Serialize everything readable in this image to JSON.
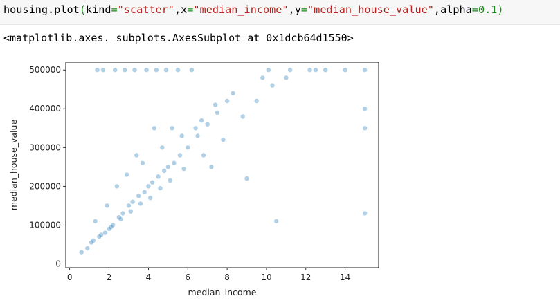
{
  "notebook": {
    "code": {
      "obj": "housing",
      "dot": ".",
      "fn": "plot",
      "open": "(",
      "kw1": "kind",
      "eq": "=",
      "val1": "\"scatter\"",
      "comma": ",",
      "kw2": "x",
      "val2": "\"median_income\"",
      "kw3": "y",
      "val3": "\"median_house_value\"",
      "kw4": "alpha",
      "val4": "0.1",
      "close": ")"
    },
    "output_text": "<matplotlib.axes._subplots.AxesSubplot at 0x1dcb64d1550>"
  },
  "chart_data": {
    "type": "scatter",
    "xlabel": "median_income",
    "ylabel": "median_house_value",
    "xlim": [
      -0.2,
      15.7
    ],
    "ylim": [
      -10000,
      520000
    ],
    "xticks": [
      0,
      2,
      4,
      6,
      8,
      10,
      12,
      14
    ],
    "xtick_labels": [
      "0",
      "2",
      "4",
      "6",
      "8",
      "10",
      "12",
      "14"
    ],
    "yticks": [
      0,
      100000,
      200000,
      300000,
      400000,
      500000
    ],
    "ytick_labels": [
      "0",
      "100000",
      "200000",
      "300000",
      "400000",
      "500000"
    ],
    "alpha": 0.1,
    "grid": false,
    "marker_color": "#1f77b4",
    "series": [
      {
        "x": [
          1.2,
          1.5,
          1.8,
          2.0,
          2.2,
          2.5,
          2.7,
          3.0,
          3.2,
          3.5,
          3.8,
          4.0,
          4.2,
          4.5,
          4.8,
          5.0,
          5.3,
          5.6,
          6.0,
          6.5,
          7.0,
          7.5,
          8.0,
          1.4,
          1.7,
          2.3,
          2.8,
          3.3,
          3.9,
          4.4,
          4.9,
          5.5,
          6.2,
          1.1,
          1.6,
          2.1,
          2.6,
          3.1,
          3.6,
          4.1,
          4.6,
          5.1,
          5.8,
          6.8,
          7.8,
          8.8,
          9.5,
          10.3,
          11.0,
          12.5,
          15.0,
          15.0,
          15.0,
          10.5,
          9.0,
          7.2,
          6.4,
          5.2,
          4.3,
          3.4,
          2.4,
          1.3,
          0.9,
          0.6,
          1.9,
          2.9,
          3.7,
          4.7,
          5.7,
          6.7,
          7.4,
          8.3,
          9.8,
          10.1,
          11.2,
          12.2,
          13.0,
          14.0,
          15.0
        ],
        "y": [
          60000,
          70000,
          80000,
          90000,
          100000,
          120000,
          130000,
          150000,
          160000,
          175000,
          185000,
          200000,
          210000,
          225000,
          240000,
          250000,
          260000,
          280000,
          300000,
          330000,
          360000,
          390000,
          420000,
          500000,
          500000,
          500000,
          500000,
          500000,
          500000,
          500000,
          500000,
          500000,
          500000,
          55000,
          75000,
          95000,
          115000,
          135000,
          155000,
          170000,
          195000,
          215000,
          245000,
          280000,
          320000,
          380000,
          420000,
          460000,
          480000,
          500000,
          500000,
          400000,
          130000,
          110000,
          220000,
          250000,
          350000,
          350000,
          350000,
          280000,
          200000,
          110000,
          40000,
          30000,
          150000,
          230000,
          260000,
          300000,
          330000,
          370000,
          410000,
          440000,
          480000,
          500000,
          500000,
          500000,
          500000,
          500000,
          350000
        ]
      }
    ]
  }
}
